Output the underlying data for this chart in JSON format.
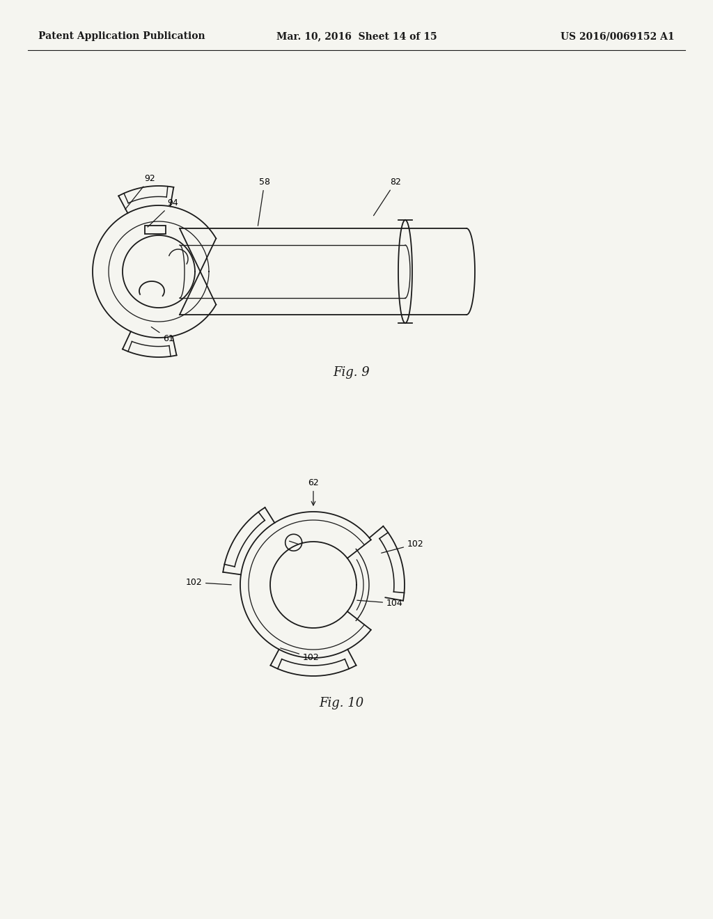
{
  "bg_color": "#f5f5f0",
  "line_color": "#1a1a1a",
  "header_left": "Patent Application Publication",
  "header_center": "Mar. 10, 2016  Sheet 14 of 15",
  "header_right": "US 2016/0069152 A1",
  "fig9_label": "Fig. 9",
  "fig10_label": "Fig. 10",
  "annotation_fontsize": 9,
  "fig_label_fontsize": 13
}
